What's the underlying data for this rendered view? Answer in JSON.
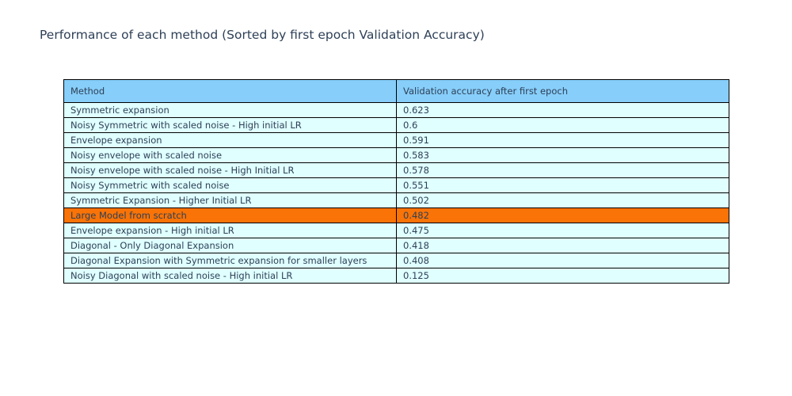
{
  "title": "Performance of each method (Sorted by first epoch Validation Accuracy)",
  "colors": {
    "title_text": "#2e4057",
    "cell_text": "#2e4057",
    "header_bg": "#87cefa",
    "row_bg": "#e0ffff",
    "highlight_bg": "#fa7306",
    "border": "#000000",
    "page_bg": "#ffffff"
  },
  "chart_data": {
    "type": "table",
    "title": "Performance of each method (Sorted by first epoch Validation Accuracy)",
    "columns": [
      "Method",
      "Validation accuracy after first epoch"
    ],
    "rows": [
      [
        "Symmetric expansion",
        0.623
      ],
      [
        "Noisy Symmetric with scaled noise - High initial LR",
        0.6
      ],
      [
        "Envelope expansion",
        0.591
      ],
      [
        "Noisy envelope with scaled noise",
        0.583
      ],
      [
        "Noisy envelope with scaled noise - High Initial LR",
        0.578
      ],
      [
        "Noisy Symmetric with scaled noise",
        0.551
      ],
      [
        "Symmetric Expansion - Higher Initial LR",
        0.502
      ],
      [
        "Large Model from scratch",
        0.482
      ],
      [
        "Envelope expansion - High initial LR",
        0.475
      ],
      [
        "Diagonal - Only Diagonal Expansion",
        0.418
      ],
      [
        "Diagonal Expansion with Symmetric expansion for smaller layers",
        0.408
      ],
      [
        "Noisy Diagonal with scaled noise - High initial LR",
        0.125
      ]
    ],
    "highlighted_row": "Large Model from scratch",
    "layout": {
      "grid": "all-cell-borders",
      "header_position": "top",
      "sort_order": "descending by validation accuracy"
    }
  }
}
